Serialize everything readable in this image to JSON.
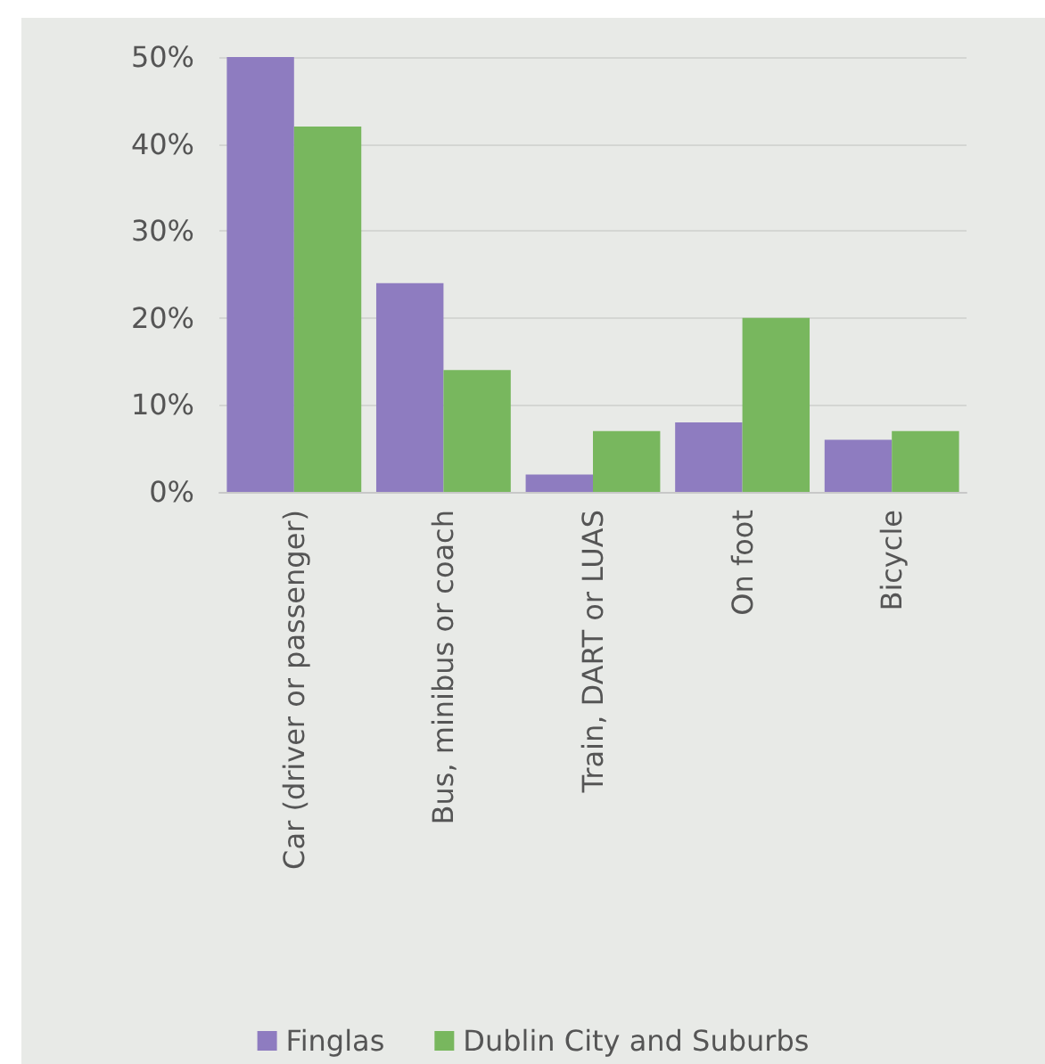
{
  "chart_data": {
    "type": "bar",
    "categories": [
      "Car (driver or passenger)",
      "Bus, minibus or coach",
      "Train, DART or LUAS",
      "On foot",
      "Bicycle"
    ],
    "series": [
      {
        "name": "Finglas",
        "color": "#8e7cc0",
        "values": [
          50,
          24,
          2,
          8,
          6
        ]
      },
      {
        "name": "Dublin City and Suburbs",
        "color": "#78b75e",
        "values": [
          42,
          14,
          7,
          20,
          7
        ]
      }
    ],
    "ylim": [
      0,
      50
    ],
    "yticks": [
      {
        "value": 0,
        "label": "0%"
      },
      {
        "value": 10,
        "label": "10%"
      },
      {
        "value": 20,
        "label": "20%"
      },
      {
        "value": 30,
        "label": "30%"
      },
      {
        "value": 40,
        "label": "40%"
      },
      {
        "value": 50,
        "label": "50%"
      }
    ],
    "grid": "y",
    "legend": "bottom"
  }
}
